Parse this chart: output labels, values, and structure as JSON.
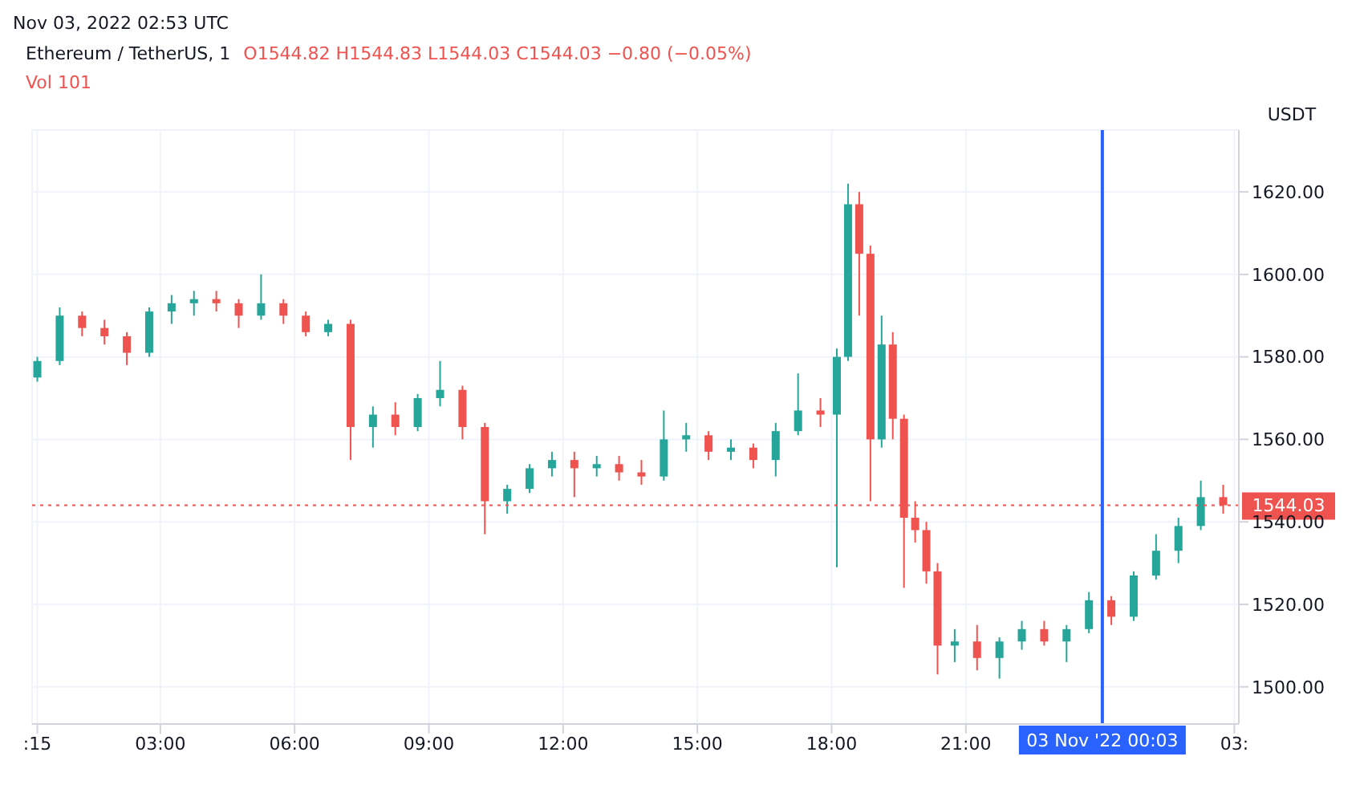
{
  "chart_data": {
    "type": "candlestick",
    "title": "Ethereum / TetherUS, 1",
    "ylabel": "USDT",
    "annotations": [
      "Nov 03, 2022 02:53 UTC",
      "O1544.82 H1544.83 L1544.03 C1544.03 −0.80 (−0.05%)",
      "Vol 101"
    ],
    "x": [
      "2022-11-02T00:15",
      "2022-11-02T00:45",
      "2022-11-02T01:15",
      "2022-11-02T01:45",
      "2022-11-02T02:15",
      "2022-11-02T02:45",
      "2022-11-02T03:15",
      "2022-11-02T03:45",
      "2022-11-02T04:15",
      "2022-11-02T04:45",
      "2022-11-02T05:15",
      "2022-11-02T05:45",
      "2022-11-02T06:15",
      "2022-11-02T06:45",
      "2022-11-02T07:15",
      "2022-11-02T07:45",
      "2022-11-02T08:15",
      "2022-11-02T08:45",
      "2022-11-02T09:15",
      "2022-11-02T09:45",
      "2022-11-02T10:15",
      "2022-11-02T10:45",
      "2022-11-02T11:15",
      "2022-11-02T11:45",
      "2022-11-02T12:15",
      "2022-11-02T12:45",
      "2022-11-02T13:15",
      "2022-11-02T13:45",
      "2022-11-02T14:15",
      "2022-11-02T14:45",
      "2022-11-02T15:15",
      "2022-11-02T15:45",
      "2022-11-02T16:15",
      "2022-11-02T16:45",
      "2022-11-02T17:15",
      "2022-11-02T17:45",
      "2022-11-02T18:07",
      "2022-11-02T18:22",
      "2022-11-02T18:37",
      "2022-11-02T18:52",
      "2022-11-02T19:07",
      "2022-11-02T19:22",
      "2022-11-02T19:37",
      "2022-11-02T19:52",
      "2022-11-02T20:07",
      "2022-11-02T20:22",
      "2022-11-02T20:45",
      "2022-11-02T21:15",
      "2022-11-02T21:45",
      "2022-11-02T22:15",
      "2022-11-02T22:45",
      "2022-11-02T23:15",
      "2022-11-02T23:45",
      "2022-11-03T00:15",
      "2022-11-03T00:45",
      "2022-11-03T01:15",
      "2022-11-03T01:45",
      "2022-11-03T02:15",
      "2022-11-03T02:45"
    ],
    "ohlc": [
      [
        1575,
        1580,
        1574,
        1579
      ],
      [
        1579,
        1592,
        1578,
        1590
      ],
      [
        1590,
        1591,
        1585,
        1587
      ],
      [
        1587,
        1589,
        1583,
        1585
      ],
      [
        1585,
        1586,
        1578,
        1581
      ],
      [
        1581,
        1592,
        1580,
        1591
      ],
      [
        1591,
        1595,
        1588,
        1593
      ],
      [
        1593,
        1596,
        1590,
        1594
      ],
      [
        1594,
        1596,
        1591,
        1593
      ],
      [
        1593,
        1594,
        1587,
        1590
      ],
      [
        1590,
        1600,
        1589,
        1593
      ],
      [
        1593,
        1594,
        1588,
        1590
      ],
      [
        1590,
        1591,
        1585,
        1586
      ],
      [
        1586,
        1589,
        1585,
        1588
      ],
      [
        1588,
        1589,
        1555,
        1563
      ],
      [
        1563,
        1568,
        1558,
        1566
      ],
      [
        1566,
        1569,
        1561,
        1563
      ],
      [
        1563,
        1571,
        1562,
        1570
      ],
      [
        1570,
        1579,
        1568,
        1572
      ],
      [
        1572,
        1573,
        1560,
        1563
      ],
      [
        1563,
        1564,
        1537,
        1545
      ],
      [
        1545,
        1549,
        1542,
        1548
      ],
      [
        1548,
        1554,
        1547,
        1553
      ],
      [
        1553,
        1557,
        1551,
        1555
      ],
      [
        1555,
        1557,
        1546,
        1553
      ],
      [
        1553,
        1556,
        1551,
        1554
      ],
      [
        1554,
        1556,
        1550,
        1552
      ],
      [
        1552,
        1555,
        1549,
        1551
      ],
      [
        1551,
        1567,
        1550,
        1560
      ],
      [
        1560,
        1564,
        1557,
        1561
      ],
      [
        1561,
        1562,
        1555,
        1557
      ],
      [
        1557,
        1560,
        1555,
        1558
      ],
      [
        1558,
        1559,
        1553,
        1555
      ],
      [
        1555,
        1564,
        1551,
        1562
      ],
      [
        1562,
        1576,
        1561,
        1567
      ],
      [
        1567,
        1570,
        1563,
        1566
      ],
      [
        1566,
        1582,
        1529,
        1580
      ],
      [
        1580,
        1622,
        1579,
        1617
      ],
      [
        1617,
        1620,
        1590,
        1605
      ],
      [
        1605,
        1607,
        1545,
        1560
      ],
      [
        1560,
        1590,
        1558,
        1583
      ],
      [
        1583,
        1586,
        1560,
        1565
      ],
      [
        1565,
        1566,
        1524,
        1541
      ],
      [
        1541,
        1545,
        1535,
        1538
      ],
      [
        1538,
        1540,
        1525,
        1528
      ],
      [
        1528,
        1530,
        1503,
        1510
      ],
      [
        1510,
        1514,
        1506,
        1511
      ],
      [
        1511,
        1515,
        1504,
        1507
      ],
      [
        1507,
        1512,
        1502,
        1511
      ],
      [
        1511,
        1516,
        1509,
        1514
      ],
      [
        1514,
        1516,
        1510,
        1511
      ],
      [
        1511,
        1515,
        1506,
        1514
      ],
      [
        1514,
        1523,
        1513,
        1521
      ],
      [
        1521,
        1522,
        1515,
        1517
      ],
      [
        1517,
        1528,
        1516,
        1527
      ],
      [
        1527,
        1537,
        1526,
        1533
      ],
      [
        1533,
        1541,
        1530,
        1539
      ],
      [
        1539,
        1550,
        1538,
        1546
      ],
      [
        1546,
        1549,
        1542,
        1544.03
      ]
    ],
    "xlim": [
      "2022-11-02T00:08",
      "2022-11-03T03:06"
    ],
    "xticks": [
      {
        "value": "2022-11-02T00:15",
        "label": ":15"
      },
      {
        "value": "2022-11-02T03:00",
        "label": "03:00"
      },
      {
        "value": "2022-11-02T06:00",
        "label": "06:00"
      },
      {
        "value": "2022-11-02T09:00",
        "label": "09:00"
      },
      {
        "value": "2022-11-02T12:00",
        "label": "12:00"
      },
      {
        "value": "2022-11-02T15:00",
        "label": "15:00"
      },
      {
        "value": "2022-11-02T18:00",
        "label": "18:00"
      },
      {
        "value": "2022-11-02T21:00",
        "label": "21:00"
      },
      {
        "value": "2022-11-03T03:00",
        "label": "03:"
      }
    ],
    "ylim": [
      1491,
      1635
    ],
    "yticks": [
      {
        "value": 1500,
        "label": "1500.00"
      },
      {
        "value": 1520,
        "label": "1520.00"
      },
      {
        "value": 1540,
        "label": "1540.00"
      },
      {
        "value": 1560,
        "label": "1560.00"
      },
      {
        "value": 1580,
        "label": "1580.00"
      },
      {
        "value": 1600,
        "label": "1600.00"
      },
      {
        "value": 1620,
        "label": "1620.00"
      }
    ],
    "ref_lines": [
      {
        "axis": "y",
        "value": 1544.03,
        "label": "1544.03",
        "color": "#ef5350",
        "line_style": "dotted"
      },
      {
        "axis": "x",
        "value": "2022-11-03T00:03",
        "label": "03 Nov '22  00:03",
        "color": "#2962ff",
        "line_style": "solid"
      }
    ],
    "grid": true
  }
}
